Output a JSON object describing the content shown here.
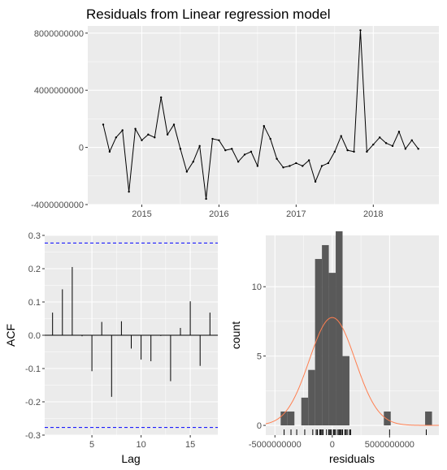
{
  "chart_data": [
    {
      "type": "line",
      "title": "Residuals from Linear regression model",
      "xlabel": "",
      "ylabel": "",
      "x_start": 2014.5,
      "x_step_months": 1,
      "xlim": [
        2014.3,
        2018.85
      ],
      "ylim": [
        -4000000000,
        8500000000
      ],
      "x_ticks": [
        2015,
        2016,
        2017,
        2018
      ],
      "x_tick_labels": [
        "2015",
        "2016",
        "2017",
        "2018"
      ],
      "y_ticks": [
        -4000000000,
        0,
        4000000000,
        8000000000
      ],
      "y_tick_labels": [
        "-4000000000",
        "0",
        "4000000000",
        "8000000000"
      ],
      "grid": true,
      "values": [
        1600000000,
        -300000000,
        700000000,
        1200000000,
        -3100000000,
        1300000000,
        500000000,
        900000000,
        700000000,
        3500000000,
        900000000,
        1600000000,
        -100000000,
        -1700000000,
        -1000000000,
        100000000,
        -3600000000,
        600000000,
        500000000,
        -200000000,
        -100000000,
        -1000000000,
        -500000000,
        -300000000,
        -1300000000,
        1500000000,
        600000000,
        -800000000,
        -1400000000,
        -1300000000,
        -1100000000,
        -1300000000,
        -900000000,
        -2400000000,
        -1300000000,
        -1100000000,
        -300000000,
        800000000,
        -200000000,
        -300000000,
        8200000000,
        -300000000,
        200000000,
        700000000,
        300000000,
        100000000,
        1100000000,
        -100000000,
        500000000,
        -100000000
      ]
    },
    {
      "type": "bar",
      "subtype": "acf",
      "title": "",
      "xlabel": "Lag",
      "ylabel": "ACF",
      "lags": [
        1,
        2,
        3,
        4,
        5,
        6,
        7,
        8,
        9,
        10,
        11,
        12,
        13,
        14,
        15,
        16,
        17
      ],
      "values": [
        0.068,
        0.138,
        0.205,
        -0.003,
        -0.108,
        0.04,
        -0.185,
        0.042,
        -0.04,
        -0.073,
        -0.078,
        -0.002,
        -0.138,
        0.022,
        0.102,
        -0.092,
        0.068
      ],
      "confidence_bound": 0.277,
      "xlim": [
        0.2,
        17.8
      ],
      "ylim": [
        -0.3,
        0.3
      ],
      "x_ticks": [
        5,
        10,
        15
      ],
      "x_tick_labels": [
        "5",
        "10",
        "15"
      ],
      "y_ticks": [
        -0.3,
        -0.2,
        -0.1,
        0.0,
        0.1,
        0.2,
        0.3
      ],
      "y_tick_labels": [
        "-0.3",
        "-0.2",
        "-0.1",
        "0.0",
        "0.1",
        "0.2",
        "0.3"
      ],
      "grid": true,
      "colors": {
        "bars": "#000000",
        "bounds": "#0000ff"
      }
    },
    {
      "type": "bar",
      "subtype": "histogram",
      "title": "",
      "xlabel": "residuals",
      "ylabel": "count",
      "bin_width": 600000000,
      "bin_centers": [
        -4200000000,
        -3600000000,
        -3000000000,
        -2400000000,
        -1800000000,
        -1200000000,
        -600000000,
        0,
        600000000,
        1200000000,
        1800000000,
        2400000000,
        3000000000,
        3600000000,
        4200000000,
        4800000000,
        5400000000,
        6000000000,
        6600000000,
        7200000000,
        7800000000,
        8400000000
      ],
      "counts": [
        1,
        1,
        0,
        2,
        4,
        12,
        13,
        11,
        14,
        5,
        0,
        0,
        0,
        0,
        0,
        1,
        0,
        0,
        0,
        0,
        0,
        1
      ],
      "normal_curve": {
        "mean": 0,
        "sd": 2000000000,
        "color": "#ff7f50"
      },
      "rug": [
        -4200000000,
        -3600000000,
        -3100000000,
        -2400000000,
        -1700000000,
        -1400000000,
        -1300000000,
        -1300000000,
        -1100000000,
        -1000000000,
        -1000000000,
        -900000000,
        -800000000,
        -500000000,
        -300000000,
        -300000000,
        -300000000,
        -200000000,
        -200000000,
        -100000000,
        -100000000,
        -100000000,
        100000000,
        100000000,
        200000000,
        300000000,
        500000000,
        500000000,
        600000000,
        700000000,
        700000000,
        800000000,
        900000000,
        900000000,
        1100000000,
        1200000000,
        1300000000,
        1500000000,
        1600000000,
        1600000000,
        5000000000,
        8200000000
      ],
      "xlim": [
        -5800000000,
        9300000000
      ],
      "ylim": [
        -0.7,
        13.7
      ],
      "x_ticks": [
        -5000000000,
        0,
        5000000000
      ],
      "x_tick_labels": [
        "-5000000000",
        "0",
        "5000000000"
      ],
      "y_ticks": [
        0,
        5,
        10
      ],
      "y_tick_labels": [
        "0",
        "5",
        "10"
      ],
      "grid": true,
      "colors": {
        "bars": "#595959"
      }
    }
  ]
}
